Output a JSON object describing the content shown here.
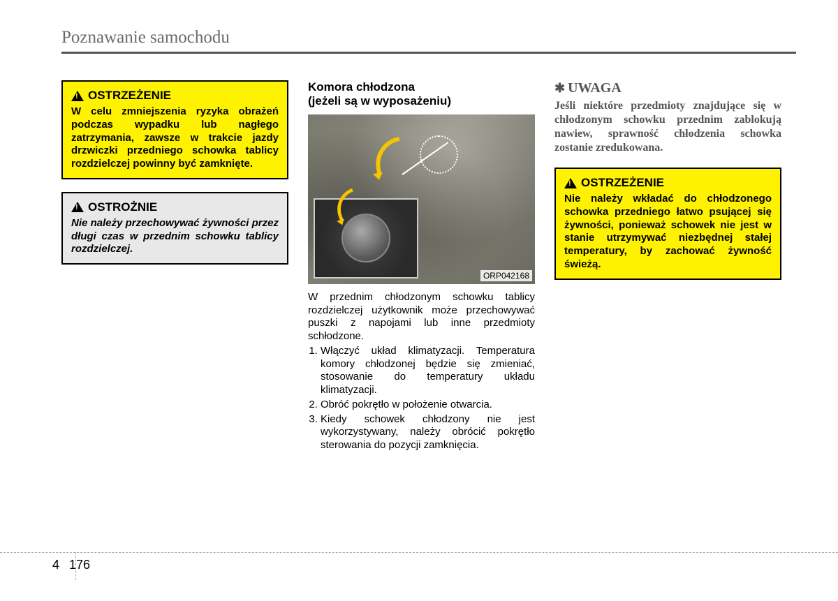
{
  "header": "Poznawanie samochodu",
  "col1": {
    "warning": {
      "title": "OSTRZEŻENIE",
      "body": "W celu zmniejszenia ryzyka obrażeń podczas wypadku lub nagłego zatrzymania, zawsze w trakcie jazdy drzwiczki przedniego schowka tablicy rozdzielczej powinny być zamknięte."
    },
    "caution": {
      "title": "OSTROŻNIE",
      "body": "Nie należy przechowywać żywności przez długi czas w przednim schowku tablicy rozdzielczej."
    }
  },
  "col2": {
    "title_line1": "Komora chłodzona",
    "title_line2": "(jeżeli są w wyposażeniu)",
    "figure_tag": "ORP042168",
    "intro": "W przednim chłodzonym schowku tablicy rozdzielczej użytkownik może przechowywać puszki z napojami lub inne przedmioty schłodzone.",
    "steps": [
      "Włączyć układ klimatyzacji. Temperatura komory chłodzonej będzie się zmieniać, stosowanie do temperatury układu klimatyzacji.",
      "Obróć pokrętło w położenie otwarcia.",
      "Kiedy schowek chłodzony nie jest wykorzystywany, należy obrócić pokrętło sterowania do pozycji zamknięcia."
    ]
  },
  "col3": {
    "note": {
      "title": "UWAGA",
      "body": "Jeśli niektóre przedmioty znajdujące się w chłodzonym schowku przednim zablokują nawiew, sprawność chłodzenia schowka zostanie zredukowana."
    },
    "warning": {
      "title": "OSTRZEŻENIE",
      "body": "Nie należy wkładać do chłodzonego schowka przedniego łatwo psującej się żywności, ponieważ schowek nie jest w stanie utrzymywać niezbędnej stałej temperatury, by zachować żywność świeżą."
    }
  },
  "page": {
    "chapter": "4",
    "number": "176"
  },
  "colors": {
    "warning_bg": "#fff200",
    "caution_bg": "#e8e8e8",
    "header_gray": "#6a6a6a",
    "note_gray": "#555555"
  }
}
